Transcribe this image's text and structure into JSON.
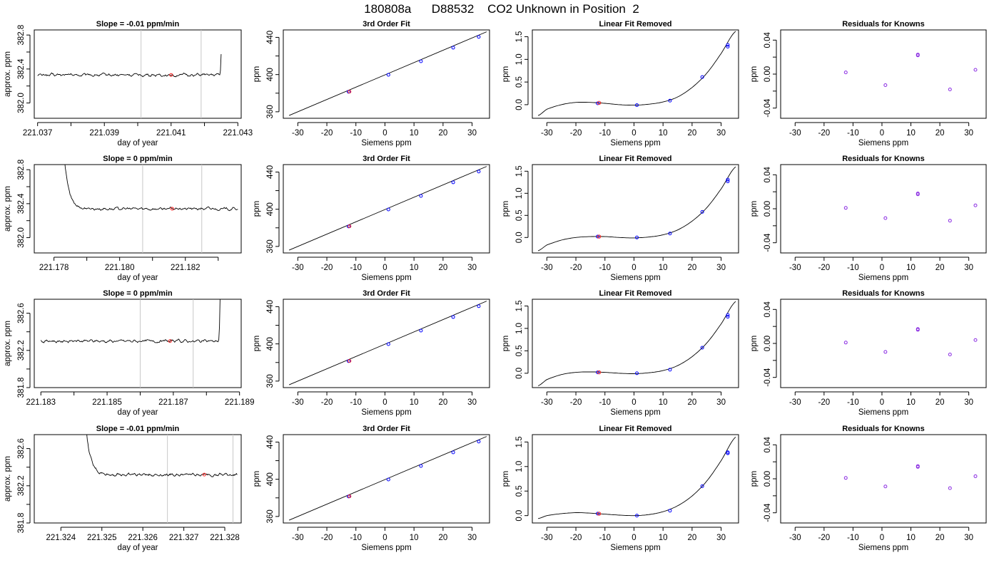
{
  "figure": {
    "title": "180808a      D88532    CO2 Unknown in Position  2"
  },
  "colors": {
    "unknown": "#ff2020",
    "known": "#0000ff",
    "residual": "#8a2be2",
    "line": "#000000",
    "marker_line": "#c8c8c8"
  },
  "chart_data": [
    {
      "type": "line",
      "title": "Slope =  -0.01  ppm/min",
      "xlabel": "day of year",
      "ylabel": "approx. ppm",
      "xlim": [
        221.0369,
        221.0431
      ],
      "ylim": [
        381.82,
        382.86
      ],
      "xticks": [
        221.037,
        221.039,
        221.041,
        221.043
      ],
      "xticks_minor": [
        221.038,
        221.04,
        221.042
      ],
      "yticks": [
        382.0,
        382.4,
        382.8
      ],
      "yticks_minor": [
        382.2,
        382.6
      ],
      "series_shape": {
        "start": 221.037,
        "end": 221.0425,
        "transient": "rise-end",
        "t_trans": 221.04245,
        "base": 382.33
      },
      "vlines": [
        221.0401,
        221.0419
      ],
      "points": [
        {
          "x": 221.041,
          "y": 382.33
        }
      ]
    },
    {
      "type": "line",
      "title": "Slope =  0  ppm/min",
      "xlabel": "day of year",
      "ylabel": "approx. ppm",
      "xlim": [
        221.1774,
        221.1837
      ],
      "ylim": [
        381.82,
        382.86
      ],
      "xticks": [
        221.178,
        221.18,
        221.182
      ],
      "xticks_minor": [
        221.179,
        221.181,
        221.183
      ],
      "yticks": [
        382.0,
        382.4,
        382.8
      ],
      "yticks_minor": [
        382.2,
        382.6
      ],
      "series_shape": {
        "start": 221.1782,
        "end": 221.1836,
        "transient": "decay-start",
        "t_trans": 221.179,
        "base": 382.34
      },
      "vlines": [
        221.1807,
        221.1825
      ],
      "points": [
        {
          "x": 221.1816,
          "y": 382.34
        }
      ]
    },
    {
      "type": "line",
      "title": "Slope =  0  ppm/min",
      "xlabel": "day of year",
      "ylabel": "approx. ppm",
      "xlim": [
        221.1828,
        221.18905
      ],
      "ylim": [
        381.8,
        382.75
      ],
      "xticks": [
        221.183,
        221.185,
        221.187,
        221.189
      ],
      "xticks_minor": [
        221.184,
        221.186,
        221.188
      ],
      "yticks": [
        381.8,
        382.2,
        382.6
      ],
      "yticks_minor": [
        382.0,
        382.4
      ],
      "series_shape": {
        "start": 221.183,
        "end": 221.1885,
        "transient": "rise-end",
        "t_trans": 221.18835,
        "base": 382.3
      },
      "vlines": [
        221.186,
        221.1876
      ],
      "points": [
        {
          "x": 221.1869,
          "y": 382.3
        }
      ]
    },
    {
      "type": "line",
      "title": "Slope =  -0.01  ppm/min",
      "xlabel": "day of year",
      "ylabel": "approx. ppm",
      "xlim": [
        221.32335,
        221.3284
      ],
      "ylim": [
        381.8,
        382.75
      ],
      "xticks": [
        221.324,
        221.325,
        221.326,
        221.327,
        221.328
      ],
      "xticks_minor": [],
      "yticks": [
        381.8,
        382.2,
        382.6
      ],
      "yticks_minor": [
        382.0,
        382.4
      ],
      "series_shape": {
        "start": 221.3245,
        "end": 221.3283,
        "transient": "decay-start",
        "t_trans": 221.32497,
        "base": 382.32
      },
      "vlines": [
        221.3266,
        221.3282
      ],
      "points": [
        {
          "x": 221.3275,
          "y": 382.32
        }
      ]
    }
  ],
  "fit_panels": {
    "fit": {
      "title": "3rd Order Fit",
      "xlabel": "Siemens ppm",
      "ylabel": "ppm",
      "xlim": [
        -35,
        36
      ],
      "ylim": [
        353,
        448
      ],
      "xticks": [
        -30,
        -20,
        -10,
        0,
        10,
        20,
        30
      ],
      "yticks": [
        360,
        400,
        440
      ],
      "yticks_minor": [
        380,
        420
      ],
      "line": {
        "x": [
          -33,
          35
        ],
        "y": [
          356,
          446
        ]
      },
      "knowns": [
        {
          "x": -12.5,
          "y": 381.5
        },
        {
          "x": 1.2,
          "y": 399.7
        },
        {
          "x": 12.4,
          "y": 414.3
        },
        {
          "x": 23.5,
          "y": 428.9
        },
        {
          "x": 32.3,
          "y": 440.5
        }
      ],
      "unknown": {
        "x": -12.2,
        "y": 381.6
      }
    },
    "linear": [
      {
        "title": "Linear Fit Removed",
        "xlabel": "Siemens ppm",
        "ylabel": "ppm",
        "xlim": [
          -35,
          36
        ],
        "ylim": [
          -0.3,
          1.65
        ],
        "xticks": [
          -30,
          -20,
          -10,
          0,
          10,
          20,
          30
        ],
        "yticks": [
          0.0,
          0.5,
          1.0,
          1.5
        ],
        "curve": [
          [
            -33,
            -0.24
          ],
          [
            -30,
            -0.1
          ],
          [
            -25,
            0.0
          ],
          [
            -20,
            0.05
          ],
          [
            -15,
            0.05
          ],
          [
            -10,
            0.03
          ],
          [
            -5,
            0.0
          ],
          [
            0,
            -0.01
          ],
          [
            5,
            0.01
          ],
          [
            10,
            0.06
          ],
          [
            15,
            0.17
          ],
          [
            20,
            0.38
          ],
          [
            25,
            0.69
          ],
          [
            30,
            1.13
          ],
          [
            35,
            1.62
          ]
        ],
        "knowns": [
          {
            "x": -12.5,
            "y": 0.03
          },
          {
            "x": 1.0,
            "y": -0.01
          },
          {
            "x": 12.4,
            "y": 0.09
          },
          {
            "x": 23.5,
            "y": 0.61
          },
          {
            "x": 32.3,
            "y": 1.28
          },
          {
            "x": 32.3,
            "y": 1.32
          }
        ],
        "unknown": {
          "x": -12.0,
          "y": 0.04
        }
      },
      {
        "title": "Linear Fit Removed",
        "xlabel": "Siemens ppm",
        "ylabel": "ppm",
        "xlim": [
          -35,
          36
        ],
        "ylim": [
          -0.35,
          1.65
        ],
        "xticks": [
          -30,
          -20,
          -10,
          0,
          10,
          20,
          30
        ],
        "yticks": [
          0.0,
          0.5,
          1.0,
          1.5
        ],
        "curve": [
          [
            -33,
            -0.3
          ],
          [
            -30,
            -0.17
          ],
          [
            -25,
            -0.06
          ],
          [
            -20,
            0.0
          ],
          [
            -15,
            0.02
          ],
          [
            -10,
            0.02
          ],
          [
            -5,
            0.0
          ],
          [
            0,
            -0.01
          ],
          [
            5,
            0.01
          ],
          [
            10,
            0.06
          ],
          [
            15,
            0.17
          ],
          [
            20,
            0.37
          ],
          [
            25,
            0.67
          ],
          [
            30,
            1.1
          ],
          [
            35,
            1.6
          ]
        ],
        "knowns": [
          {
            "x": -12.5,
            "y": 0.02
          },
          {
            "x": 1.0,
            "y": 0.0
          },
          {
            "x": 12.4,
            "y": 0.09
          },
          {
            "x": 23.5,
            "y": 0.58
          },
          {
            "x": 32.3,
            "y": 1.27
          },
          {
            "x": 32.3,
            "y": 1.31
          }
        ],
        "unknown": {
          "x": -12.0,
          "y": 0.02
        }
      },
      {
        "title": "Linear Fit Removed",
        "xlabel": "Siemens ppm",
        "ylabel": "ppm",
        "xlim": [
          -35,
          36
        ],
        "ylim": [
          -0.32,
          1.65
        ],
        "xticks": [
          -30,
          -20,
          -10,
          0,
          10,
          20,
          30
        ],
        "yticks": [
          0.0,
          0.5,
          1.0,
          1.5
        ],
        "curve": [
          [
            -33,
            -0.28
          ],
          [
            -30,
            -0.14
          ],
          [
            -25,
            -0.03
          ],
          [
            -20,
            0.02
          ],
          [
            -15,
            0.03
          ],
          [
            -10,
            0.02
          ],
          [
            -5,
            0.0
          ],
          [
            0,
            -0.01
          ],
          [
            5,
            0.01
          ],
          [
            10,
            0.06
          ],
          [
            15,
            0.17
          ],
          [
            20,
            0.37
          ],
          [
            25,
            0.67
          ],
          [
            30,
            1.1
          ],
          [
            35,
            1.6
          ]
        ],
        "knowns": [
          {
            "x": -12.5,
            "y": 0.02
          },
          {
            "x": 1.0,
            "y": 0.0
          },
          {
            "x": 12.4,
            "y": 0.08
          },
          {
            "x": 23.5,
            "y": 0.57
          },
          {
            "x": 32.3,
            "y": 1.26
          },
          {
            "x": 32.3,
            "y": 1.3
          }
        ],
        "unknown": {
          "x": -12.0,
          "y": 0.02
        }
      },
      {
        "title": "Linear Fit Removed",
        "xlabel": "Siemens ppm",
        "ylabel": "ppm",
        "xlim": [
          -35,
          36
        ],
        "ylim": [
          -0.15,
          1.65
        ],
        "xticks": [
          -30,
          -20,
          -10,
          0,
          10,
          20,
          30
        ],
        "yticks": [
          0.0,
          0.5,
          1.0,
          1.5
        ],
        "curve": [
          [
            -33,
            -0.06
          ],
          [
            -30,
            0.0
          ],
          [
            -25,
            0.04
          ],
          [
            -20,
            0.06
          ],
          [
            -15,
            0.05
          ],
          [
            -10,
            0.03
          ],
          [
            -5,
            0.01
          ],
          [
            0,
            0.0
          ],
          [
            5,
            0.02
          ],
          [
            10,
            0.08
          ],
          [
            15,
            0.2
          ],
          [
            20,
            0.4
          ],
          [
            25,
            0.7
          ],
          [
            30,
            1.12
          ],
          [
            35,
            1.6
          ]
        ],
        "knowns": [
          {
            "x": -12.5,
            "y": 0.04
          },
          {
            "x": 1.0,
            "y": 0.0
          },
          {
            "x": 12.4,
            "y": 0.1
          },
          {
            "x": 23.5,
            "y": 0.6
          },
          {
            "x": 32.3,
            "y": 1.27
          },
          {
            "x": 32.3,
            "y": 1.29
          }
        ],
        "unknown": {
          "x": -12.0,
          "y": 0.04
        }
      }
    ],
    "resid": [
      {
        "title": "Residuals for Knowns",
        "xlabel": "Siemens ppm",
        "ylabel": "ppm",
        "xlim": [
          -35,
          36
        ],
        "ylim": [
          -0.052,
          0.052
        ],
        "xticks": [
          -30,
          -20,
          -10,
          0,
          10,
          20,
          30
        ],
        "yticks": [
          -0.04,
          0.0,
          0.04
        ],
        "yticks_minor": [
          -0.02,
          0.02
        ],
        "points": [
          {
            "x": -12.5,
            "y": 0.002
          },
          {
            "x": 1.2,
            "y": -0.013
          },
          {
            "x": 12.4,
            "y": 0.023
          },
          {
            "x": 12.4,
            "y": 0.022
          },
          {
            "x": 23.5,
            "y": -0.018
          },
          {
            "x": 32.3,
            "y": 0.005
          }
        ]
      },
      {
        "title": "Residuals for Knowns",
        "xlabel": "Siemens ppm",
        "ylabel": "ppm",
        "xlim": [
          -35,
          36
        ],
        "ylim": [
          -0.052,
          0.052
        ],
        "xticks": [
          -30,
          -20,
          -10,
          0,
          10,
          20,
          30
        ],
        "yticks": [
          -0.04,
          0.0,
          0.04
        ],
        "yticks_minor": [
          -0.02,
          0.02
        ],
        "points": [
          {
            "x": -12.5,
            "y": 0.001
          },
          {
            "x": 1.2,
            "y": -0.011
          },
          {
            "x": 12.4,
            "y": 0.018
          },
          {
            "x": 12.4,
            "y": 0.017
          },
          {
            "x": 23.5,
            "y": -0.014
          },
          {
            "x": 32.3,
            "y": 0.004
          }
        ]
      },
      {
        "title": "Residuals for Knowns",
        "xlabel": "Siemens ppm",
        "ylabel": "ppm",
        "xlim": [
          -35,
          36
        ],
        "ylim": [
          -0.052,
          0.052
        ],
        "xticks": [
          -30,
          -20,
          -10,
          0,
          10,
          20,
          30
        ],
        "yticks": [
          -0.04,
          0.0,
          0.04
        ],
        "yticks_minor": [
          -0.02,
          0.02
        ],
        "points": [
          {
            "x": -12.5,
            "y": 0.001
          },
          {
            "x": 1.2,
            "y": -0.01
          },
          {
            "x": 12.4,
            "y": 0.017
          },
          {
            "x": 12.4,
            "y": 0.016
          },
          {
            "x": 23.5,
            "y": -0.013
          },
          {
            "x": 32.3,
            "y": 0.004
          }
        ]
      },
      {
        "title": "Residuals for Knowns",
        "xlabel": "Siemens ppm",
        "ylabel": "ppm",
        "xlim": [
          -35,
          36
        ],
        "ylim": [
          -0.052,
          0.052
        ],
        "xticks": [
          -30,
          -20,
          -10,
          0,
          10,
          20,
          30
        ],
        "yticks": [
          -0.04,
          0.0,
          0.04
        ],
        "yticks_minor": [
          -0.02,
          0.02
        ],
        "points": [
          {
            "x": -12.5,
            "y": 0.001
          },
          {
            "x": 1.2,
            "y": -0.009
          },
          {
            "x": 12.4,
            "y": 0.015
          },
          {
            "x": 12.4,
            "y": 0.014
          },
          {
            "x": 23.5,
            "y": -0.011
          },
          {
            "x": 32.3,
            "y": 0.003
          }
        ]
      }
    ]
  }
}
